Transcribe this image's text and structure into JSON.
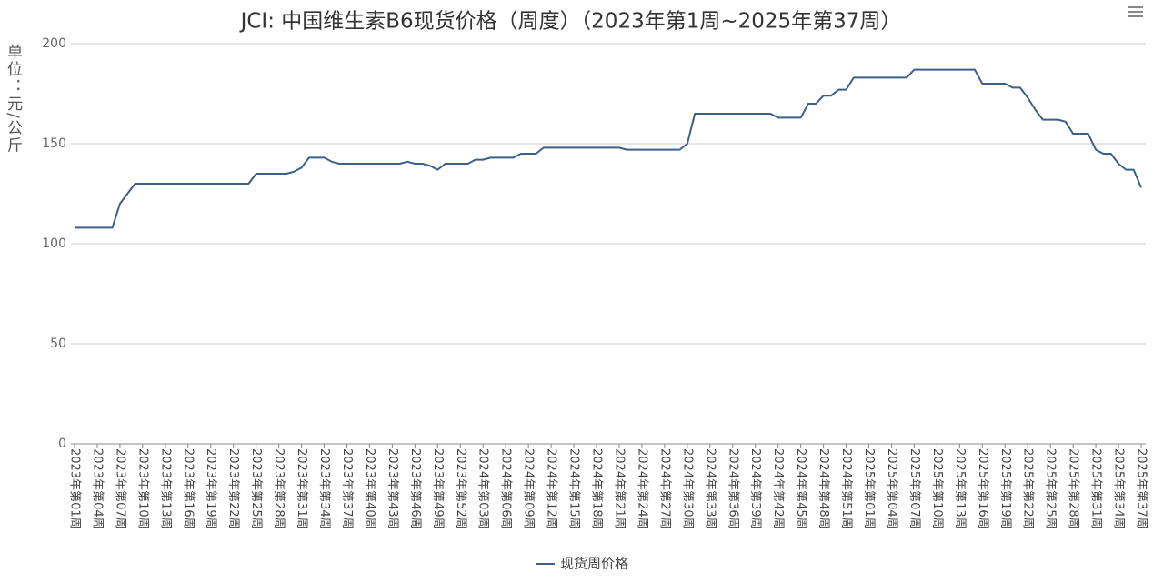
{
  "chart_data": {
    "type": "line",
    "title": "JCI: 中国维生素B6现货价格（周度）（2023年第1周~2025年第37周）",
    "y_label": "单位：元/公斤",
    "categories": [
      "2023年第01周",
      null,
      null,
      "2023年第04周",
      null,
      null,
      "2023年第07周",
      null,
      null,
      "2023年第10周",
      null,
      null,
      "2023年第13周",
      null,
      null,
      "2023年第16周",
      null,
      null,
      "2023年第19周",
      null,
      null,
      "2023年第22周",
      null,
      null,
      "2023年第25周",
      null,
      null,
      "2023年第28周",
      null,
      null,
      "2023年第31周",
      null,
      null,
      "2023年第34周",
      null,
      null,
      "2023年第37周",
      null,
      null,
      "2023年第40周",
      null,
      null,
      "2023年第43周",
      null,
      null,
      "2023年第46周",
      null,
      null,
      "2023年第49周",
      null,
      null,
      "2023年第52周",
      null,
      null,
      "2024年第03周",
      null,
      null,
      "2024年第06周",
      null,
      null,
      "2024年第09周",
      null,
      null,
      "2024年第12周",
      null,
      null,
      "2024年第15周",
      null,
      null,
      "2024年第18周",
      null,
      null,
      "2024年第21周",
      null,
      null,
      "2024年第24周",
      null,
      null,
      "2024年第27周",
      null,
      null,
      "2024年第30周",
      null,
      null,
      "2024年第33周",
      null,
      null,
      "2024年第36周",
      null,
      null,
      "2024年第39周",
      null,
      null,
      "2024年第42周",
      null,
      null,
      "2024年第45周",
      null,
      null,
      "2024年第48周",
      null,
      null,
      "2024年第51周",
      null,
      null,
      "2025年第01周",
      null,
      null,
      "2025年第04周",
      null,
      null,
      "2025年第07周",
      null,
      null,
      "2025年第10周",
      null,
      null,
      "2025年第13周",
      null,
      null,
      "2025年第16周",
      null,
      null,
      "2025年第19周",
      null,
      null,
      "2025年第22周",
      null,
      null,
      "2025年第25周",
      null,
      null,
      "2025年第28周",
      null,
      null,
      "2025年第31周",
      null,
      null,
      "2025年第34周",
      null,
      null,
      "2025年第37周"
    ],
    "series": [
      {
        "name": "现货周价格",
        "color": "#3d5f8a",
        "values": [
          108,
          108,
          108,
          108,
          108,
          108,
          120,
          125,
          130,
          130,
          130,
          130,
          130,
          130,
          130,
          130,
          130,
          130,
          130,
          130,
          130,
          130,
          130,
          130,
          135,
          135,
          135,
          135,
          135,
          136,
          138,
          143,
          143,
          143,
          141,
          140,
          140,
          140,
          140,
          140,
          140,
          140,
          140,
          140,
          141,
          140,
          140,
          139,
          137,
          140,
          140,
          140,
          140,
          142,
          142,
          143,
          143,
          143,
          143,
          145,
          145,
          145,
          148,
          148,
          148,
          148,
          148,
          148,
          148,
          148,
          148,
          148,
          148,
          147,
          147,
          147,
          147,
          147,
          147,
          147,
          147,
          150,
          165,
          165,
          165,
          165,
          165,
          165,
          165,
          165,
          165,
          165,
          165,
          163,
          163,
          163,
          163,
          170,
          170,
          174,
          174,
          177,
          177,
          183,
          183,
          183,
          183,
          183,
          183,
          183,
          183,
          187,
          187,
          187,
          187,
          187,
          187,
          187,
          187,
          187,
          180,
          180,
          180,
          180,
          178,
          178,
          173,
          167,
          162,
          162,
          162,
          161,
          155,
          155,
          155,
          147,
          145,
          145,
          140,
          137,
          137,
          128
        ]
      }
    ],
    "ylim": [
      0,
      200
    ],
    "yticks": [
      0,
      50,
      100,
      150,
      200
    ],
    "grid": true,
    "legend": "bottom"
  }
}
